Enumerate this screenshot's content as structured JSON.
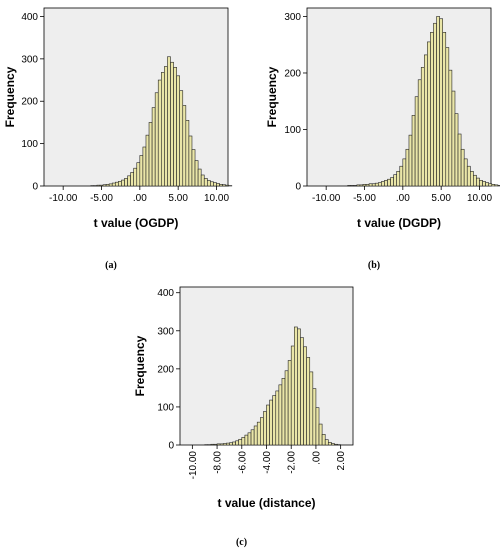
{
  "chart_data": [
    {
      "type": "bar",
      "panel_label": "(a)",
      "xlabel": "t value (OGDP)",
      "ylabel": "Frequency",
      "xlim": [
        -12.5,
        11.5
      ],
      "ylim": [
        0,
        420
      ],
      "x_ticks": [
        -10.0,
        -5.0,
        0.0,
        5.0,
        10.0
      ],
      "x_tick_labels": [
        "-10.00",
        "-5.00",
        ".00",
        "5.00",
        "10.00"
      ],
      "y_ticks": [
        0,
        100,
        200,
        300,
        400
      ],
      "y_tick_labels": [
        "0",
        "100",
        "200",
        "300",
        "400"
      ],
      "x_tick_rotation": 0,
      "bin_start": -6.4,
      "bin_width": 0.4,
      "values": [
        1,
        1,
        2,
        2,
        3,
        4,
        5,
        7,
        9,
        11,
        14,
        18,
        24,
        32,
        42,
        55,
        72,
        92,
        120,
        150,
        185,
        220,
        250,
        268,
        282,
        305,
        292,
        280,
        260,
        225,
        190,
        155,
        118,
        86,
        60,
        40,
        26,
        18,
        13,
        10,
        8,
        6,
        4,
        3,
        2,
        1
      ],
      "bar_color": "#eae6a8",
      "plot_bg": "#eeeeee",
      "grid": false
    },
    {
      "type": "bar",
      "panel_label": "(b)",
      "xlabel": "t value (DGDP)",
      "ylabel": "Frequency",
      "xlim": [
        -12.5,
        11.5
      ],
      "ylim": [
        0,
        315
      ],
      "x_ticks": [
        -10.0,
        -5.0,
        0.0,
        5.0,
        10.0
      ],
      "x_tick_labels": [
        "-10.00",
        "-5.00",
        ".00",
        "5.00",
        "10.00"
      ],
      "y_ticks": [
        0,
        100,
        200,
        300
      ],
      "y_tick_labels": [
        "0",
        "100",
        "200",
        "300"
      ],
      "x_tick_rotation": 0,
      "bin_start": -7.2,
      "bin_width": 0.4,
      "values": [
        1,
        1,
        1,
        2,
        2,
        3,
        3,
        4,
        4,
        5,
        6,
        8,
        10,
        12,
        15,
        20,
        26,
        35,
        48,
        65,
        90,
        125,
        158,
        188,
        210,
        232,
        255,
        272,
        288,
        300,
        296,
        272,
        245,
        205,
        168,
        128,
        92,
        65,
        48,
        35,
        26,
        19,
        14,
        10,
        8,
        6,
        4,
        3,
        2,
        1
      ],
      "bar_color": "#eae6a8",
      "plot_bg": "#eeeeee",
      "grid": false
    },
    {
      "type": "bar",
      "panel_label": "(c)",
      "xlabel": "t value (distance)",
      "ylabel": "Frequency",
      "xlim": [
        -11,
        3
      ],
      "ylim": [
        0,
        415
      ],
      "x_ticks": [
        -10.0,
        -8.0,
        -6.0,
        -4.0,
        -2.0,
        0.0,
        2.0
      ],
      "x_tick_labels": [
        "-10.00",
        "-8.00",
        "-6.00",
        "-4.00",
        "-2.00",
        ".00",
        "2.00"
      ],
      "y_ticks": [
        0,
        100,
        200,
        300,
        400
      ],
      "y_tick_labels": [
        "0",
        "100",
        "200",
        "300",
        "400"
      ],
      "x_tick_rotation": -90,
      "bin_start": -9.0,
      "bin_width": 0.25,
      "values": [
        1,
        1,
        2,
        2,
        3,
        3,
        4,
        5,
        6,
        8,
        11,
        15,
        20,
        26,
        32,
        40,
        50,
        60,
        72,
        88,
        105,
        118,
        130,
        142,
        158,
        175,
        195,
        222,
        260,
        310,
        305,
        282,
        258,
        230,
        192,
        148,
        98,
        55,
        28,
        14,
        7,
        4,
        2,
        1
      ],
      "bar_color": "#eae6a8",
      "plot_bg": "#eeeeee",
      "grid": false
    }
  ]
}
